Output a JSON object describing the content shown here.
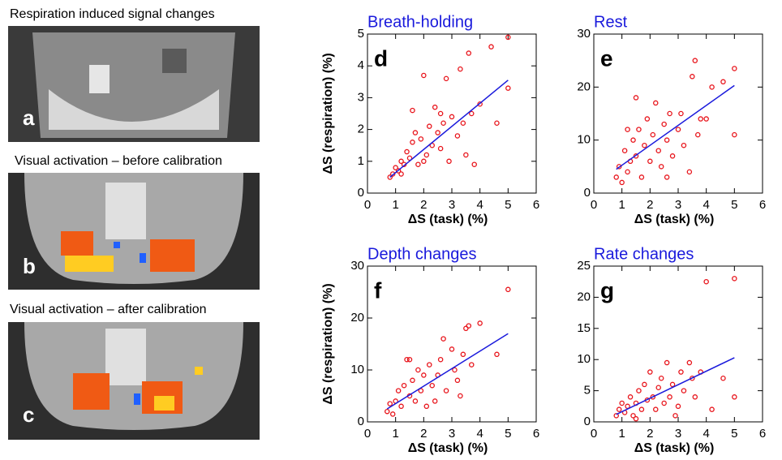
{
  "image_panels": [
    {
      "caption": "Respiration induced signal changes",
      "label": "a"
    },
    {
      "caption": "Visual activation – before calibration",
      "label": "b"
    },
    {
      "caption": "Visual activation – after calibration",
      "label": "c"
    }
  ],
  "chart_data": [
    {
      "type": "scatter",
      "title": "Breath-holding",
      "panel_label": "d",
      "xlabel": "ΔS (task) (%)",
      "ylabel": "ΔS (respiration) (%)",
      "color": "#e8141b",
      "x": [
        0.8,
        0.9,
        1.0,
        1.1,
        1.2,
        1.3,
        1.4,
        1.5,
        1.6,
        1.7,
        1.8,
        1.9,
        2.0,
        2.1,
        2.2,
        2.3,
        2.4,
        2.5,
        2.6,
        2.7,
        2.8,
        2.9,
        3.0,
        3.2,
        3.3,
        3.4,
        3.5,
        3.6,
        3.7,
        3.8,
        4.0,
        4.4,
        4.6,
        5.0,
        5.0,
        1.6,
        1.2,
        2.0,
        2.6
      ],
      "values": [
        0.5,
        0.6,
        0.8,
        0.7,
        1.0,
        0.9,
        1.3,
        1.1,
        1.6,
        1.9,
        0.9,
        1.7,
        3.7,
        1.2,
        2.1,
        1.5,
        2.7,
        1.9,
        1.4,
        2.2,
        3.6,
        1.0,
        2.4,
        1.8,
        3.9,
        2.2,
        1.2,
        4.4,
        2.5,
        0.9,
        2.8,
        4.6,
        2.2,
        4.9,
        3.3,
        2.6,
        0.6,
        1.0,
        2.5
      ],
      "fit": {
        "x": [
          0.8,
          5.0
        ],
        "values": [
          0.5,
          3.55
        ],
        "color": "#1a1adc"
      },
      "xlim": [
        0,
        6
      ],
      "xticks": [
        0,
        1,
        2,
        3,
        4,
        5,
        6
      ],
      "ylim": [
        0,
        5
      ],
      "yticks": [
        0,
        1,
        2,
        3,
        4,
        5
      ]
    },
    {
      "type": "scatter",
      "title": "Rest",
      "panel_label": "e",
      "xlabel": "ΔS (task) (%)",
      "color": "#e8141b",
      "x": [
        0.8,
        0.9,
        1.0,
        1.1,
        1.2,
        1.3,
        1.4,
        1.5,
        1.5,
        1.6,
        1.7,
        1.8,
        1.9,
        2.0,
        2.1,
        2.2,
        2.3,
        2.4,
        2.5,
        2.6,
        2.7,
        2.8,
        3.0,
        3.1,
        3.2,
        3.4,
        3.5,
        3.6,
        3.7,
        3.8,
        4.0,
        4.2,
        4.6,
        5.0,
        5.0,
        1.2,
        2.6
      ],
      "values": [
        3,
        5,
        2,
        8,
        4,
        6,
        10,
        7,
        18,
        12,
        3,
        9,
        14,
        6,
        11,
        17,
        8,
        5,
        13,
        10,
        15,
        7,
        12,
        15,
        9,
        4,
        22,
        25,
        11,
        14,
        14,
        20,
        21,
        23.5,
        11,
        12,
        3
      ],
      "fit": {
        "x": [
          0.8,
          5.0
        ],
        "values": [
          4.5,
          20.3
        ],
        "color": "#1a1adc"
      },
      "xlim": [
        0,
        6
      ],
      "xticks": [
        0,
        1,
        2,
        3,
        4,
        5,
        6
      ],
      "ylim": [
        0,
        30
      ],
      "yticks": [
        0,
        10,
        20,
        30
      ]
    },
    {
      "type": "scatter",
      "title": "Depth changes",
      "panel_label": "f",
      "xlabel": "ΔS (task) (%)",
      "ylabel": "ΔS (respiration) (%)",
      "color": "#e8141b",
      "x": [
        0.7,
        0.8,
        0.9,
        1.0,
        1.1,
        1.2,
        1.3,
        1.4,
        1.5,
        1.6,
        1.7,
        1.8,
        1.9,
        2.0,
        2.1,
        2.2,
        2.3,
        2.5,
        2.6,
        2.7,
        2.8,
        3.0,
        3.1,
        3.2,
        3.4,
        3.5,
        3.6,
        3.7,
        4.0,
        4.6,
        5.0,
        1.5,
        2.4,
        3.3
      ],
      "values": [
        2,
        3.5,
        1.5,
        4,
        6,
        3,
        7,
        12,
        5,
        8,
        4,
        10,
        6,
        9,
        3,
        11,
        7,
        9,
        12,
        16,
        6,
        14,
        10,
        8,
        13,
        18,
        18.5,
        11,
        19,
        13,
        25.5,
        12,
        4,
        5
      ],
      "fit": {
        "x": [
          0.7,
          5.0
        ],
        "values": [
          2.5,
          17
        ],
        "color": "#1a1adc"
      },
      "xlim": [
        0,
        6
      ],
      "xticks": [
        0,
        1,
        2,
        3,
        4,
        5,
        6
      ],
      "ylim": [
        0,
        30
      ],
      "yticks": [
        0,
        10,
        20,
        30
      ]
    },
    {
      "type": "scatter",
      "title": "Rate changes",
      "panel_label": "g",
      "xlabel": "ΔS (task) (%)",
      "color": "#e8141b",
      "x": [
        0.8,
        0.9,
        1.0,
        1.1,
        1.2,
        1.3,
        1.4,
        1.5,
        1.6,
        1.7,
        1.8,
        1.9,
        2.0,
        2.1,
        2.2,
        2.3,
        2.4,
        2.5,
        2.6,
        2.7,
        2.8,
        3.0,
        3.1,
        3.2,
        3.4,
        3.5,
        3.6,
        3.8,
        4.0,
        4.2,
        4.6,
        5.0,
        5.0,
        1.5,
        2.9
      ],
      "values": [
        1,
        2,
        3,
        1.5,
        2.5,
        4,
        1,
        3,
        5,
        2,
        6,
        3.5,
        8,
        4,
        2,
        5.5,
        7,
        3,
        9.5,
        4,
        6,
        2.5,
        8,
        5,
        9.5,
        7,
        4,
        8,
        22.5,
        2,
        7,
        23,
        4,
        0.5,
        1
      ],
      "fit": {
        "x": [
          0.8,
          5.0
        ],
        "values": [
          1.2,
          10.3
        ],
        "color": "#1a1adc"
      },
      "xlim": [
        0,
        6
      ],
      "xticks": [
        0,
        1,
        2,
        3,
        4,
        5,
        6
      ],
      "ylim": [
        0,
        25
      ],
      "yticks": [
        0,
        5,
        10,
        15,
        20,
        25
      ]
    }
  ]
}
